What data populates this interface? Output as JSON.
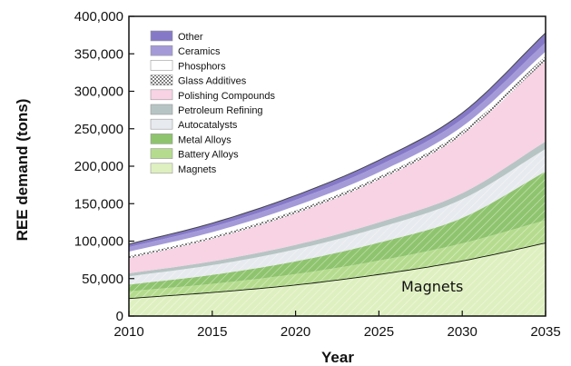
{
  "chart_data": {
    "type": "area",
    "stacked": true,
    "xlabel": "Year",
    "ylabel": "REE demand (tons)",
    "xlim": [
      2010,
      2035
    ],
    "ylim": [
      0,
      400000
    ],
    "xticks": [
      2010,
      2015,
      2020,
      2025,
      2030,
      2035
    ],
    "x_tick_labels": [
      "2010",
      "2015",
      "2020",
      "2025",
      "2030",
      "2035"
    ],
    "yticks": [
      0,
      50000,
      100000,
      150000,
      200000,
      250000,
      300000,
      350000,
      400000
    ],
    "y_tick_labels": [
      "0",
      "50,000",
      "100,000",
      "150,000",
      "200,000",
      "250,000",
      "300,000",
      "350,000",
      "400,000"
    ],
    "grid": false,
    "legend_position": "top-left",
    "x": [
      2010,
      2015,
      2020,
      2025,
      2030,
      2035
    ],
    "series": [
      {
        "name": "Magnets",
        "color": "#dff0c0",
        "values": [
          24000,
          32000,
          42000,
          56000,
          74000,
          98000
        ]
      },
      {
        "name": "Battery Alloys",
        "color": "#b5dc8e",
        "values": [
          9000,
          11000,
          14000,
          18000,
          23000,
          30000
        ]
      },
      {
        "name": "Metal Alloys",
        "color": "#8fc46e",
        "values": [
          9000,
          12000,
          17000,
          24000,
          34000,
          65000
        ]
      },
      {
        "name": "Autocatalysts",
        "color": "#e7eaee",
        "values": [
          11000,
          13000,
          16000,
          20000,
          25000,
          30000
        ]
      },
      {
        "name": "Petroleum Refining",
        "color": "#b7c4c4",
        "values": [
          4000,
          5000,
          6000,
          7000,
          8000,
          10000
        ]
      },
      {
        "name": "Polishing Compounds",
        "color": "#f7d3e4",
        "values": [
          20000,
          30000,
          42000,
          57000,
          78000,
          108000
        ]
      },
      {
        "name": "Glass Additives",
        "color": "#8a8a8a",
        "values": [
          3000,
          3000,
          4000,
          4000,
          5000,
          6000
        ]
      },
      {
        "name": "Phosphors",
        "color": "#ffffff",
        "values": [
          6000,
          6000,
          6000,
          6000,
          6000,
          6000
        ]
      },
      {
        "name": "Ceramics",
        "color": "#a49ad8",
        "values": [
          6000,
          7000,
          8000,
          9000,
          10000,
          12000
        ]
      },
      {
        "name": "Other",
        "color": "#8579c7",
        "values": [
          4000,
          5000,
          6000,
          7000,
          8000,
          13000
        ]
      }
    ],
    "legend_order": [
      "Other",
      "Ceramics",
      "Phosphors",
      "Glass Additives",
      "Polishing Compounds",
      "Petroleum Refining",
      "Autocatalysts",
      "Metal Alloys",
      "Battery Alloys",
      "Magnets"
    ],
    "annotations": [
      {
        "text": "Magnets",
        "x": 2031,
        "y": 35000
      }
    ]
  }
}
